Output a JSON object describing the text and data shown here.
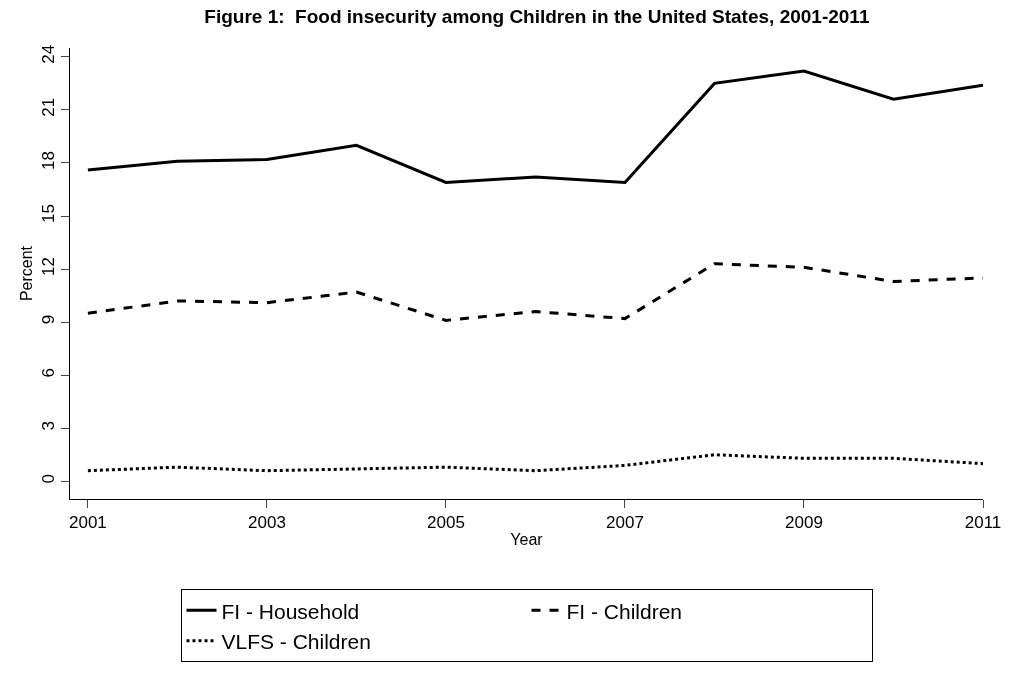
{
  "chart_data": {
    "type": "line",
    "title": "Figure 1:  Food insecurity among Children in the United States, 2001-2011",
    "xlabel": "Year",
    "ylabel": "Percent",
    "x": [
      2001,
      2002,
      2003,
      2004,
      2005,
      2006,
      2007,
      2008,
      2009,
      2010,
      2011
    ],
    "series": [
      {
        "name": "FI - Household",
        "color": "#000000",
        "line_style": "solid",
        "values": [
          17.6,
          18.1,
          18.2,
          19.0,
          16.9,
          17.2,
          16.9,
          22.5,
          23.2,
          21.6,
          22.4
        ]
      },
      {
        "name": "FI - Children",
        "color": "#000000",
        "line_style": "dashed",
        "values": [
          9.5,
          10.2,
          10.1,
          10.7,
          9.1,
          9.6,
          9.2,
          12.3,
          12.1,
          11.3,
          11.5
        ]
      },
      {
        "name": "VLFS - Children",
        "color": "#000000",
        "line_style": "dotted",
        "values": [
          0.6,
          0.8,
          0.6,
          0.7,
          0.8,
          0.6,
          0.9,
          1.5,
          1.3,
          1.3,
          1.0
        ]
      }
    ],
    "xlim": [
      2000.8,
      2011
    ],
    "xticks": [
      2001,
      2003,
      2005,
      2007,
      2009,
      2011
    ],
    "ylim": [
      -1,
      24.5
    ],
    "yticks": [
      0,
      3,
      6,
      9,
      12,
      15,
      18,
      21,
      24
    ],
    "legend": "bottom"
  }
}
